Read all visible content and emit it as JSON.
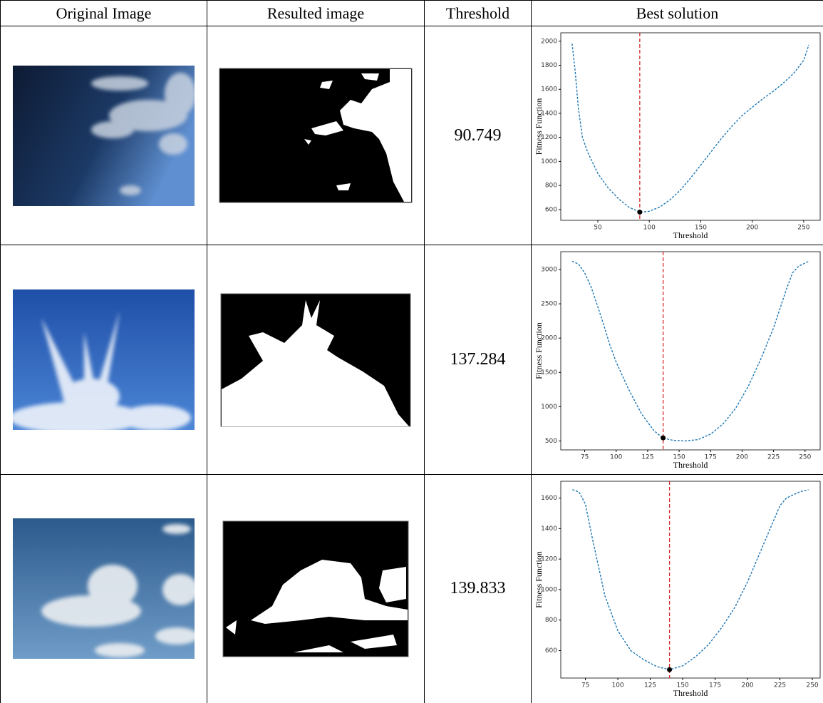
{
  "table": {
    "headers": [
      "Original Image",
      "Resulted image",
      "Threshold",
      "Best solution"
    ],
    "rows": [
      {
        "threshold": 90.749
      },
      {
        "threshold": 137.284
      },
      {
        "threshold": 139.833
      }
    ]
  },
  "chart_data": [
    {
      "type": "line",
      "xlabel": "Threshold",
      "ylabel": "Fitness Function",
      "color": "#1f77b4",
      "dashed": true,
      "vline_color": "#d62728",
      "marker_color": "#000000",
      "x": [
        25,
        28,
        31,
        35,
        40,
        50,
        60,
        70,
        80,
        91,
        100,
        110,
        120,
        130,
        140,
        150,
        160,
        170,
        180,
        190,
        200,
        210,
        220,
        230,
        240,
        250,
        255
      ],
      "values": [
        1980,
        1750,
        1450,
        1200,
        1080,
        900,
        780,
        690,
        620,
        578,
        585,
        620,
        680,
        760,
        860,
        970,
        1080,
        1190,
        1290,
        1380,
        1450,
        1520,
        1580,
        1650,
        1730,
        1840,
        1970
      ],
      "best": [
        90.749,
        578
      ],
      "xlim": [
        14,
        266
      ],
      "xticks": [
        50,
        100,
        150,
        200,
        250
      ],
      "ylim": [
        510,
        2070
      ],
      "yticks": [
        600,
        800,
        1000,
        1200,
        1400,
        1600,
        1800,
        2000
      ]
    },
    {
      "type": "line",
      "xlabel": "Threshold",
      "ylabel": "Fitness Function",
      "color": "#1f77b4",
      "dashed": true,
      "vline_color": "#d62728",
      "marker_color": "#000000",
      "x": [
        65,
        70,
        75,
        80,
        85,
        90,
        95,
        100,
        110,
        120,
        130,
        137,
        145,
        155,
        165,
        175,
        185,
        195,
        205,
        215,
        225,
        235,
        240,
        245,
        253
      ],
      "values": [
        3120,
        3080,
        2950,
        2750,
        2480,
        2200,
        1900,
        1650,
        1250,
        900,
        650,
        545,
        510,
        500,
        520,
        600,
        750,
        980,
        1300,
        1700,
        2150,
        2700,
        2950,
        3050,
        3120
      ],
      "best": [
        137.284,
        545
      ],
      "xlim": [
        56,
        262
      ],
      "xticks": [
        75,
        100,
        125,
        150,
        175,
        200,
        225,
        250
      ],
      "ylim": [
        370,
        3260
      ],
      "yticks": [
        500,
        1000,
        1500,
        2000,
        2500,
        3000
      ]
    },
    {
      "type": "line",
      "xlabel": "Threshold",
      "ylabel": "Fitness Function",
      "color": "#1f77b4",
      "dashed": true,
      "vline_color": "#d62728",
      "marker_color": "#000000",
      "x": [
        65,
        70,
        75,
        80,
        90,
        100,
        110,
        120,
        130,
        139.833,
        150,
        160,
        170,
        180,
        190,
        200,
        210,
        220,
        225,
        230,
        240,
        247
      ],
      "values": [
        1655,
        1640,
        1560,
        1350,
        960,
        730,
        600,
        540,
        495,
        475,
        500,
        560,
        640,
        750,
        880,
        1050,
        1250,
        1450,
        1550,
        1600,
        1640,
        1655
      ],
      "best": [
        139.833,
        475
      ],
      "xlim": [
        56,
        256
      ],
      "xticks": [
        75,
        100,
        125,
        150,
        175,
        200,
        225,
        250
      ],
      "ylim": [
        420,
        1710
      ],
      "yticks": [
        600,
        800,
        1000,
        1200,
        1400,
        1600
      ]
    }
  ]
}
